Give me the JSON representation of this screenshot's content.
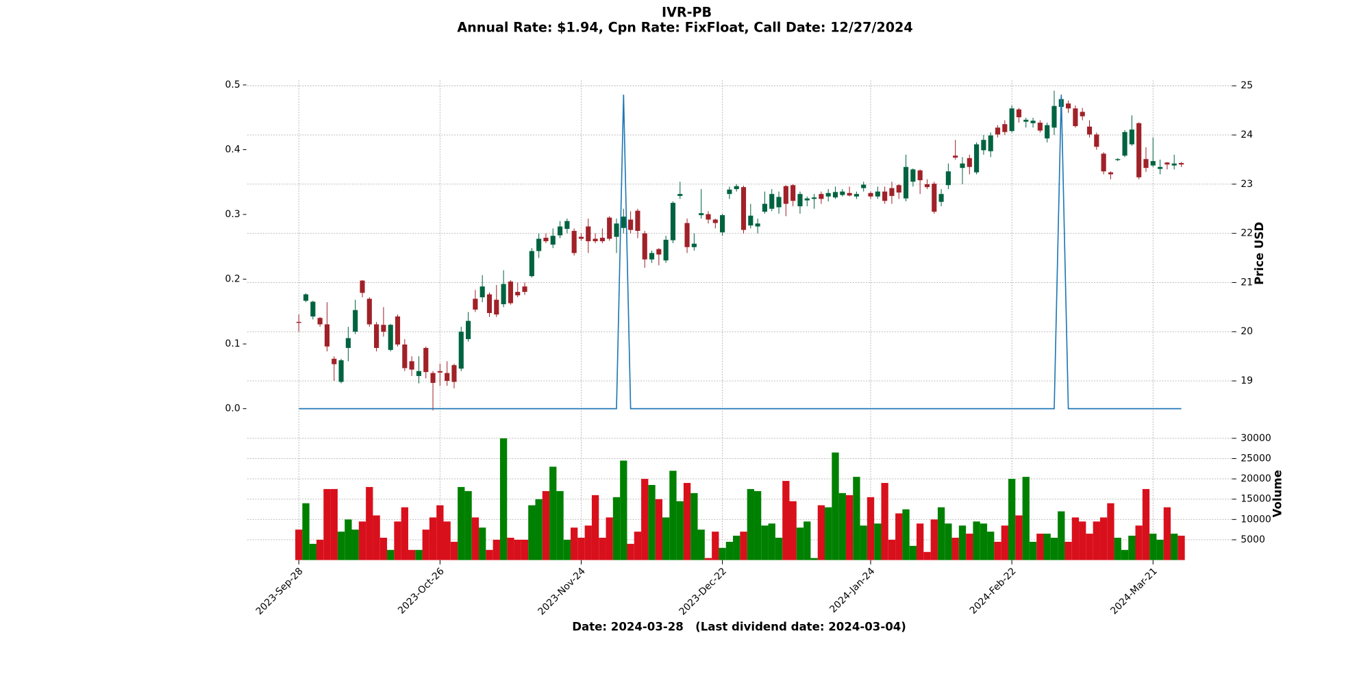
{
  "chart_data": [
    {
      "type": "candlestick",
      "title": "IVR-PB",
      "subtitle": "Annual Rate: $1.94, Cpn Rate: FixFloat, Call Date: 12/27/2024",
      "y2label": "Price USD",
      "categories": [
        "2023-Sep-28",
        null,
        null,
        null,
        null,
        null,
        null,
        null,
        null,
        null,
        null,
        null,
        null,
        null,
        null,
        null,
        null,
        null,
        null,
        null,
        "2023-Oct-26",
        null,
        null,
        null,
        null,
        null,
        null,
        null,
        null,
        null,
        null,
        null,
        null,
        null,
        null,
        null,
        null,
        null,
        null,
        null,
        "2023-Nov-24",
        null,
        null,
        null,
        null,
        null,
        null,
        null,
        null,
        null,
        null,
        null,
        null,
        null,
        null,
        null,
        null,
        null,
        null,
        null,
        "2023-Dec-22",
        null,
        null,
        null,
        null,
        null,
        null,
        null,
        null,
        null,
        null,
        null,
        null,
        null,
        null,
        null,
        null,
        null,
        null,
        null,
        null,
        "2024-Jan-24",
        null,
        null,
        null,
        null,
        null,
        null,
        null,
        null,
        null,
        null,
        null,
        null,
        null,
        null,
        null,
        null,
        null,
        null,
        null,
        "2024-Feb-22",
        null,
        null,
        null,
        null,
        null,
        null,
        null,
        null,
        null,
        null,
        null,
        null,
        null,
        null,
        null,
        null,
        null,
        null,
        null,
        "2024-Mar-21",
        null,
        null,
        null,
        null
      ],
      "open": [
        20.2,
        20.63,
        20.31,
        20.28,
        20.15,
        19.45,
        18.98,
        19.67,
        20.0,
        21.04,
        20.67,
        20.15,
        20.14,
        19.63,
        20.31,
        19.74,
        19.4,
        19.1,
        19.67,
        19.16,
        19.2,
        19.16,
        19.32,
        19.25,
        19.85,
        20.67,
        20.7,
        20.76,
        20.65,
        20.56,
        21.02,
        20.81,
        20.92,
        21.13,
        21.64,
        21.91,
        21.77,
        21.96,
        22.09,
        22.05,
        21.93,
        22.14,
        21.89,
        21.91,
        22.32,
        21.93,
        22.11,
        22.28,
        22.46,
        22.0,
        21.47,
        21.68,
        21.45,
        21.86,
        22.76,
        22.21,
        21.72,
        22.37,
        22.39,
        22.28,
        22.02,
        22.8,
        22.9,
        22.94,
        22.16,
        22.14,
        22.44,
        22.5,
        22.53,
        22.96,
        22.98,
        22.55,
        22.67,
        22.7,
        22.8,
        22.75,
        22.73,
        22.78,
        22.82,
        22.75,
        22.92,
        22.82,
        22.75,
        22.85,
        22.92,
        22.98,
        22.71,
        23.05,
        23.28,
        23.0,
        23.01,
        22.64,
        22.98,
        23.58,
        23.33,
        23.53,
        23.24,
        23.69,
        23.67,
        24.15,
        24.22,
        24.08,
        24.52,
        24.27,
        24.24,
        24.25,
        23.93,
        24.15,
        24.57,
        24.64,
        24.54,
        24.47,
        24.17,
        24.01,
        23.62,
        23.24,
        23.49,
        23.58,
        23.81,
        24.24,
        23.51,
        23.38,
        23.31,
        23.44,
        23.38,
        23.43
      ],
      "high": [
        20.35,
        20.78,
        20.63,
        20.3,
        20.6,
        19.5,
        19.45,
        20.1,
        20.65,
        21.05,
        20.7,
        20.2,
        20.5,
        20.16,
        20.35,
        19.85,
        19.5,
        19.5,
        19.7,
        19.2,
        19.35,
        19.4,
        19.35,
        20.1,
        20.4,
        20.85,
        21.15,
        20.8,
        20.95,
        21.25,
        21.05,
        21.0,
        21.0,
        21.7,
        22.0,
        22.0,
        22.1,
        22.25,
        22.3,
        22.1,
        22.0,
        22.3,
        22.0,
        22.1,
        22.35,
        22.3,
        22.5,
        22.45,
        22.5,
        22.05,
        21.65,
        21.7,
        21.95,
        22.65,
        23.05,
        22.3,
        22.0,
        22.9,
        22.45,
        22.3,
        22.4,
        22.95,
        23.0,
        22.97,
        22.6,
        22.3,
        22.85,
        22.9,
        22.85,
        22.98,
        23.0,
        22.85,
        22.75,
        22.8,
        22.85,
        22.9,
        22.95,
        22.9,
        22.95,
        22.85,
        23.05,
        22.85,
        22.95,
        22.95,
        23.05,
        23.0,
        23.6,
        23.32,
        23.3,
        23.1,
        23.05,
        22.9,
        23.42,
        23.9,
        23.55,
        23.6,
        23.85,
        24.0,
        24.05,
        24.2,
        24.3,
        24.6,
        24.55,
        24.35,
        24.35,
        24.3,
        24.25,
        24.9,
        24.8,
        24.7,
        24.6,
        24.55,
        24.3,
        24.05,
        23.65,
        23.26,
        23.53,
        24.1,
        24.4,
        24.26,
        23.75,
        23.95,
        23.5,
        23.45,
        23.6,
        23.45
      ],
      "low": [
        20.0,
        20.6,
        20.25,
        20.1,
        19.6,
        19.0,
        18.95,
        19.4,
        19.95,
        20.7,
        20.1,
        19.6,
        19.9,
        19.6,
        19.7,
        19.2,
        19.1,
        18.95,
        19.05,
        18.4,
        18.9,
        18.9,
        18.85,
        19.2,
        19.8,
        20.4,
        20.6,
        20.3,
        20.3,
        20.5,
        20.55,
        20.7,
        20.75,
        21.1,
        21.5,
        21.8,
        21.7,
        21.9,
        22.0,
        21.55,
        21.85,
        21.6,
        21.8,
        21.8,
        21.85,
        21.6,
        22.0,
        22.0,
        21.9,
        21.3,
        21.4,
        21.35,
        21.4,
        21.8,
        22.7,
        21.6,
        21.65,
        22.3,
        22.2,
        22.1,
        21.95,
        22.7,
        22.85,
        22.0,
        22.1,
        22.0,
        22.4,
        22.45,
        22.4,
        22.35,
        22.55,
        22.4,
        22.55,
        22.5,
        22.6,
        22.65,
        22.7,
        22.75,
        22.75,
        22.7,
        22.85,
        22.7,
        22.7,
        22.6,
        22.6,
        22.7,
        22.65,
        22.95,
        22.8,
        22.9,
        22.4,
        22.55,
        22.9,
        23.5,
        23.0,
        23.2,
        23.2,
        23.6,
        23.55,
        23.95,
        24.0,
        24.05,
        24.25,
        24.15,
        24.15,
        24.05,
        23.85,
        24.0,
        24.5,
        24.45,
        24.15,
        24.3,
        23.95,
        23.7,
        23.2,
        23.1,
        23.47,
        23.55,
        23.78,
        23.1,
        23.25,
        23.35,
        23.2,
        23.3,
        23.3,
        23.35
      ],
      "close": [
        20.18,
        20.76,
        20.61,
        20.15,
        19.7,
        19.34,
        19.42,
        19.87,
        20.44,
        20.79,
        20.15,
        19.67,
        20.0,
        20.14,
        19.74,
        19.26,
        19.23,
        19.2,
        19.18,
        18.96,
        19.17,
        19.0,
        18.98,
        20.0,
        20.22,
        20.45,
        20.92,
        20.38,
        20.35,
        20.97,
        20.58,
        20.74,
        20.81,
        21.64,
        21.89,
        21.84,
        21.95,
        22.14,
        22.25,
        21.6,
        21.89,
        21.84,
        21.84,
        21.84,
        21.89,
        22.2,
        22.34,
        22.07,
        22.05,
        21.47,
        21.6,
        21.57,
        21.87,
        22.62,
        22.8,
        21.72,
        21.79,
        22.41,
        22.28,
        22.21,
        22.37,
        22.89,
        22.96,
        22.07,
        22.36,
        22.2,
        22.6,
        22.8,
        22.74,
        22.6,
        22.66,
        22.8,
        22.71,
        22.73,
        22.7,
        22.82,
        22.84,
        22.85,
        22.77,
        22.8,
        22.99,
        22.75,
        22.85,
        22.66,
        22.76,
        22.83,
        23.35,
        23.3,
        23.08,
        22.94,
        22.44,
        22.8,
        23.26,
        23.54,
        23.42,
        23.35,
        23.81,
        23.9,
        23.99,
        24.01,
        24.06,
        24.54,
        24.36,
        24.31,
        24.29,
        24.09,
        24.2,
        24.59,
        24.73,
        24.54,
        24.18,
        24.38,
        24.01,
        23.76,
        23.26,
        23.2,
        23.51,
        24.06,
        24.11,
        23.14,
        23.33,
        23.47,
        23.35,
        23.4,
        23.42,
        23.4
      ],
      "up_color": "#006340",
      "down_color": "#a02128",
      "y2lim": [
        18.04,
        25.11
      ],
      "y2ticks": [
        19,
        20,
        21,
        22,
        23,
        24,
        25
      ],
      "ylim": [
        -0.03,
        0.507
      ],
      "yticks": [
        {
          "value": 0,
          "label": "0.0"
        },
        0.1,
        0.2,
        0.3,
        0.4,
        0.5
      ],
      "series": [
        {
          "color": "#1f77b4",
          "values": [
            0,
            0,
            0,
            0,
            0,
            0,
            0,
            0,
            0,
            0,
            0,
            0,
            0,
            0,
            0,
            0,
            0,
            0,
            0,
            0,
            0,
            0,
            0,
            0,
            0,
            0,
            0,
            0,
            0,
            0,
            0,
            0,
            0,
            0,
            0,
            0,
            0,
            0,
            0,
            0,
            0,
            0,
            0,
            0,
            0,
            0,
            0.485,
            0,
            0,
            0,
            0,
            0,
            0,
            0,
            0,
            0,
            0,
            0,
            0,
            0,
            0,
            0,
            0,
            0,
            0,
            0,
            0,
            0,
            0,
            0,
            0,
            0,
            0,
            0,
            0,
            0,
            0,
            0,
            0,
            0,
            0,
            0,
            0,
            0,
            0,
            0,
            0,
            0,
            0,
            0,
            0,
            0,
            0,
            0,
            0,
            0,
            0,
            0,
            0,
            0,
            0,
            0,
            0,
            0,
            0,
            0,
            0,
            0,
            0.485,
            0,
            0,
            0,
            0,
            0,
            0,
            0,
            0,
            0,
            0,
            0,
            0,
            0,
            0,
            0,
            0,
            0
          ]
        }
      ],
      "grid": true
    },
    {
      "type": "bar",
      "ylabel": "Volume",
      "xlabel": "Date: 2024-03-28   (Last dividend date: 2024-03-04)",
      "values": [
        7500,
        14000,
        4000,
        5000,
        17500,
        17500,
        7000,
        10000,
        7500,
        9500,
        18000,
        11000,
        5500,
        2500,
        9500,
        13000,
        2500,
        2500,
        7500,
        10500,
        13500,
        9500,
        4500,
        18000,
        17000,
        10500,
        8000,
        2500,
        5000,
        30000,
        5500,
        5000,
        5000,
        13500,
        15000,
        17000,
        23000,
        17000,
        5000,
        8000,
        5500,
        8500,
        16000,
        5500,
        10500,
        15500,
        24500,
        4000,
        7000,
        20000,
        18500,
        15000,
        10500,
        22000,
        14500,
        19000,
        16500,
        7500,
        500,
        7000,
        3000,
        4500,
        6000,
        7000,
        17500,
        17000,
        8500,
        9000,
        5500,
        19500,
        14500,
        8000,
        9500,
        500,
        13500,
        13000,
        26500,
        16500,
        16000,
        20500,
        8500,
        15500,
        9000,
        19000,
        5000,
        11500,
        12500,
        3500,
        9000,
        2000,
        10000,
        13000,
        9000,
        5500,
        8500,
        6500,
        9500,
        9000,
        7000,
        4500,
        8500,
        20000,
        11000,
        20500,
        4500,
        6500,
        6500,
        5500,
        12000,
        4500,
        10500,
        9500,
        6500,
        9500,
        10500,
        14000,
        5500,
        2500,
        6000,
        8500,
        17500,
        6500,
        5000,
        13000,
        6500,
        6000
      ],
      "up_color": "#008000",
      "down_color": "#d8101c",
      "ylim": [
        0,
        31000
      ],
      "yticks": [
        5000,
        10000,
        15000,
        20000,
        25000,
        30000
      ],
      "grid": true
    }
  ]
}
